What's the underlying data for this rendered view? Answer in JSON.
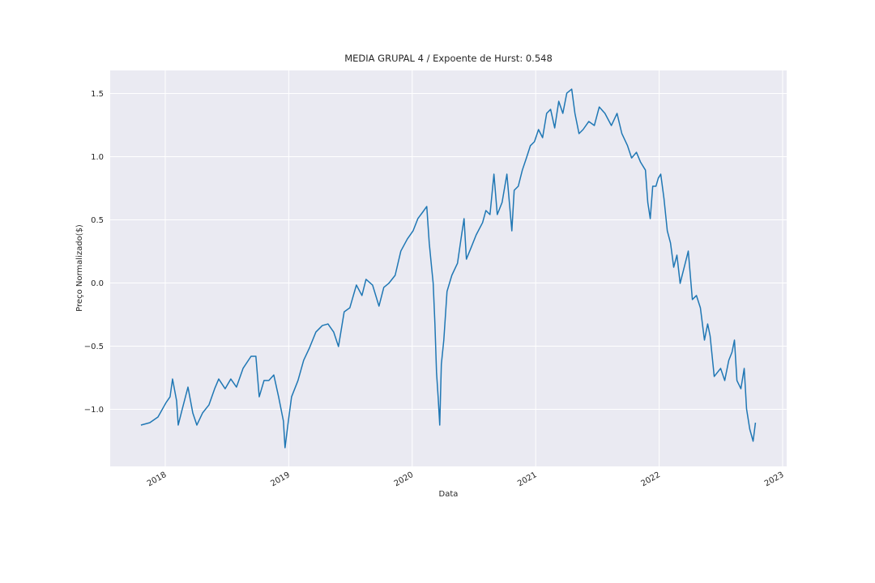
{
  "chart_data": {
    "type": "line",
    "title": "MEDIA GRUPAL 4 / Expoente de Hurst: 0.548",
    "x_label": "Data",
    "y_label": "Preço Normalizado($)",
    "grid": true,
    "xlim": [
      2017.554,
      2023.033
    ],
    "ylim": [
      -1.452,
      1.683
    ],
    "xticks": [
      2018,
      2019,
      2020,
      2021,
      2022,
      2023
    ],
    "yticks": [
      {
        "value": -1.0,
        "label": "−1.0"
      },
      {
        "value": -0.5,
        "label": "−0.5"
      },
      {
        "value": 0.0,
        "label": "0.0"
      },
      {
        "value": 0.5,
        "label": "0.5"
      },
      {
        "value": 1.0,
        "label": "1.0"
      },
      {
        "value": 1.5,
        "label": "1.5"
      }
    ],
    "x": [
      2017.803,
      2017.875,
      2017.941,
      2018.007,
      2018.039,
      2018.059,
      2018.092,
      2018.105,
      2018.138,
      2018.184,
      2018.223,
      2018.256,
      2018.302,
      2018.354,
      2018.4,
      2018.433,
      2018.485,
      2018.531,
      2018.577,
      2018.63,
      2018.695,
      2018.734,
      2018.761,
      2018.8,
      2018.839,
      2018.879,
      2018.918,
      2018.957,
      2018.97,
      2018.997,
      2019.023,
      2019.075,
      2019.121,
      2019.167,
      2019.22,
      2019.272,
      2019.318,
      2019.364,
      2019.403,
      2019.449,
      2019.495,
      2019.548,
      2019.593,
      2019.626,
      2019.679,
      2019.731,
      2019.77,
      2019.81,
      2019.862,
      2019.908,
      2019.961,
      2020.007,
      2020.046,
      2020.085,
      2020.118,
      2020.138,
      2020.157,
      2020.17,
      2020.184,
      2020.197,
      2020.21,
      2020.223,
      2020.236,
      2020.256,
      2020.282,
      2020.321,
      2020.367,
      2020.4,
      2020.42,
      2020.439,
      2020.479,
      2020.518,
      2020.57,
      2020.597,
      2020.63,
      2020.662,
      2020.689,
      2020.728,
      2020.767,
      2020.807,
      2020.826,
      2020.859,
      2020.892,
      2020.925,
      2020.957,
      2020.99,
      2021.023,
      2021.056,
      2021.089,
      2021.121,
      2021.154,
      2021.187,
      2021.22,
      2021.252,
      2021.292,
      2021.318,
      2021.351,
      2021.384,
      2021.43,
      2021.475,
      2021.515,
      2021.561,
      2021.613,
      2021.659,
      2021.698,
      2021.744,
      2021.777,
      2021.816,
      2021.849,
      2021.889,
      2021.908,
      2021.928,
      2021.948,
      2021.974,
      2021.993,
      2022.013,
      2022.039,
      2022.066,
      2022.092,
      2022.118,
      2022.144,
      2022.17,
      2022.203,
      2022.236,
      2022.269,
      2022.302,
      2022.334,
      2022.367,
      2022.393,
      2022.413,
      2022.446,
      2022.472,
      2022.498,
      2022.531,
      2022.564,
      2022.59,
      2022.61,
      2022.63,
      2022.662,
      2022.689,
      2022.708,
      2022.734,
      2022.761,
      2022.78
    ],
    "series": [
      {
        "color": "#1f77b4",
        "values": [
          -1.125,
          -1.106,
          -1.061,
          -0.946,
          -0.901,
          -0.76,
          -0.933,
          -1.125,
          -0.997,
          -0.824,
          -1.029,
          -1.125,
          -1.029,
          -0.965,
          -0.837,
          -0.76,
          -0.837,
          -0.76,
          -0.824,
          -0.676,
          -0.58,
          -0.58,
          -0.901,
          -0.772,
          -0.772,
          -0.728,
          -0.901,
          -1.093,
          -1.304,
          -1.093,
          -0.901,
          -0.772,
          -0.612,
          -0.516,
          -0.388,
          -0.337,
          -0.324,
          -0.388,
          -0.503,
          -0.228,
          -0.196,
          -0.016,
          -0.099,
          0.029,
          -0.016,
          -0.183,
          -0.035,
          -0.003,
          0.061,
          0.253,
          0.349,
          0.413,
          0.51,
          0.561,
          0.606,
          0.317,
          0.125,
          -0.003,
          -0.324,
          -0.708,
          -0.901,
          -1.125,
          -0.644,
          -0.452,
          -0.067,
          0.061,
          0.157,
          0.381,
          0.51,
          0.189,
          0.285,
          0.381,
          0.478,
          0.574,
          0.542,
          0.862,
          0.542,
          0.638,
          0.862,
          0.413,
          0.734,
          0.766,
          0.894,
          0.99,
          1.087,
          1.119,
          1.215,
          1.151,
          1.343,
          1.375,
          1.228,
          1.439,
          1.343,
          1.503,
          1.535,
          1.343,
          1.183,
          1.215,
          1.279,
          1.247,
          1.394,
          1.343,
          1.247,
          1.343,
          1.183,
          1.087,
          0.99,
          1.035,
          0.958,
          0.894,
          0.638,
          0.51,
          0.766,
          0.766,
          0.83,
          0.862,
          0.67,
          0.413,
          0.317,
          0.125,
          0.221,
          -0.003,
          0.125,
          0.253,
          -0.131,
          -0.099,
          -0.196,
          -0.452,
          -0.324,
          -0.42,
          -0.74,
          -0.708,
          -0.676,
          -0.772,
          -0.612,
          -0.548,
          -0.452,
          -0.772,
          -0.837,
          -0.676,
          -0.997,
          -1.157,
          -1.253,
          -1.106
        ]
      }
    ]
  }
}
